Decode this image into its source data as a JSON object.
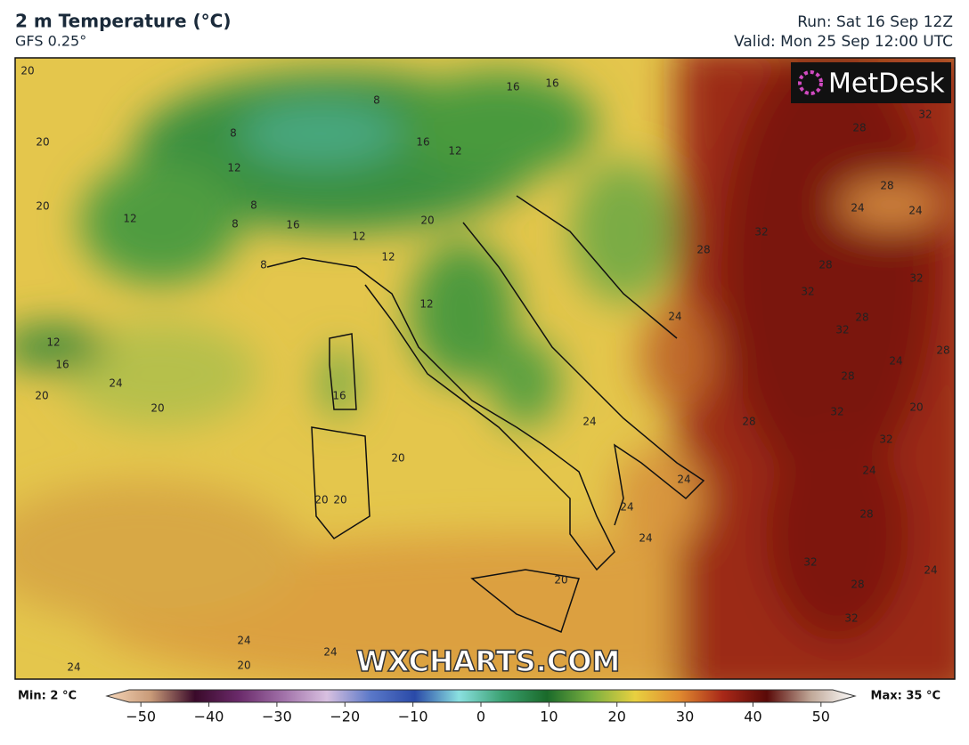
{
  "header": {
    "title": "2 m Temperature (°C)",
    "subtitle": "GFS 0.25°",
    "run": "Run: Sat 16 Sep 12Z",
    "valid": "Valid: Mon 25 Sep 12:00 UTC"
  },
  "logo": "MetDesk",
  "watermark": "WXCHARTS.COM",
  "contour_labels": [
    20,
    20,
    20,
    12,
    12,
    8,
    8,
    16,
    16,
    16,
    12,
    8,
    8,
    16,
    12,
    12,
    8,
    20,
    12,
    12,
    16,
    24,
    20,
    20,
    16,
    20,
    20,
    20,
    24,
    24,
    24,
    24,
    20,
    24,
    28,
    32,
    28,
    32,
    28,
    32,
    28,
    32,
    28,
    24,
    24,
    32,
    24,
    28,
    28,
    32,
    20,
    28,
    32,
    24,
    28,
    32,
    24,
    28,
    32,
    24,
    24,
    20,
    24
  ],
  "colorbar": {
    "min_label": "Min: 2 °C",
    "max_label": "Max: 35 °C",
    "lim": [
      -55,
      55
    ],
    "colors": [
      "#f6d6b8",
      "#c89a78",
      "#3a0a2a",
      "#6a2a6a",
      "#a070a8",
      "#d8c0e0",
      "#5a78c8",
      "#2a4aa8",
      "#8ae0e0",
      "#3aa070",
      "#1a6a2a",
      "#7ab040",
      "#e8d040",
      "#e08a30",
      "#a82818",
      "#5a0a08",
      "#c0a898",
      "#ffffff"
    ],
    "ticks": [
      {
        "value": -50,
        "label": "−50"
      },
      {
        "value": -40,
        "label": "−40"
      },
      {
        "value": -30,
        "label": "−30"
      },
      {
        "value": -20,
        "label": "−20"
      },
      {
        "value": -10,
        "label": "−10"
      },
      0,
      10,
      20,
      30,
      40,
      50
    ]
  }
}
